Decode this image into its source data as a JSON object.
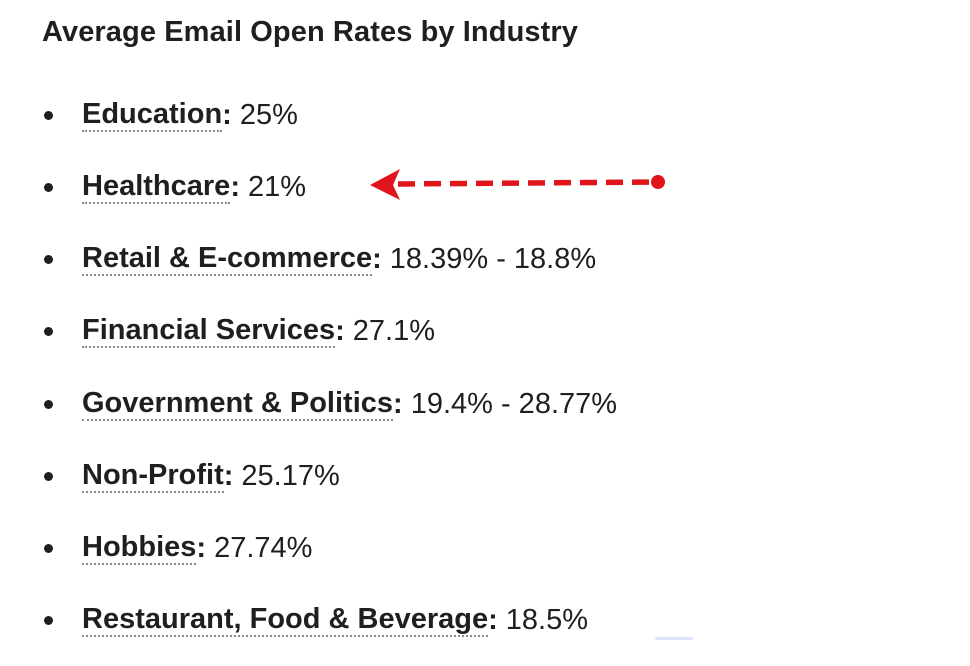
{
  "title": "Average Email Open Rates by Industry",
  "colon": ":",
  "items": [
    {
      "name": "Education",
      "rate": "25%"
    },
    {
      "name": "Healthcare",
      "rate": "21%"
    },
    {
      "name": "Retail & E-commerce",
      "rate": "18.39% - 18.8%"
    },
    {
      "name": "Financial Services",
      "rate": "27.1%"
    },
    {
      "name": "Government & Politics",
      "rate": "19.4% - 28.77%"
    },
    {
      "name": "Non-Profit",
      "rate": "25.17%"
    },
    {
      "name": "Hobbies",
      "rate": "27.74%"
    },
    {
      "name": "Restaurant, Food & Beverage",
      "rate": "18.5%"
    }
  ],
  "annotation": {
    "target": "Healthcare",
    "color": "#e0151b",
    "icon": "dashed-arrow-left-icon"
  }
}
